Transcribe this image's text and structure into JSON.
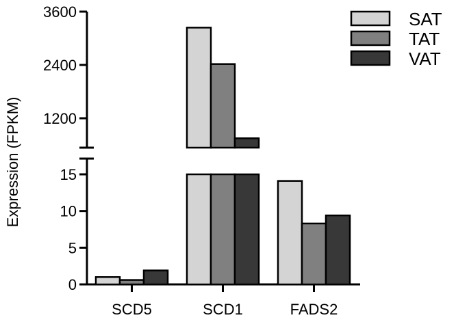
{
  "chart_data": {
    "type": "bar",
    "title": "",
    "xlabel": "",
    "ylabel": "Expression (FPKM)",
    "categories": [
      "SCD5",
      "SCD1",
      "FADS2"
    ],
    "series": [
      {
        "name": "SAT",
        "color": "#d4d4d4",
        "values": [
          1.0,
          3240,
          14.1
        ]
      },
      {
        "name": "TAT",
        "color": "#808080",
        "values": [
          0.6,
          2420,
          8.3
        ]
      },
      {
        "name": "VAT",
        "color": "#383838",
        "values": [
          1.9,
          750,
          9.4
        ]
      }
    ],
    "y_axis_break": {
      "lower_range": [
        0,
        15
      ],
      "upper_range": [
        500,
        3600
      ]
    },
    "lower_yticks": [
      0,
      5,
      10,
      15
    ],
    "upper_yticks": [
      1200,
      2400,
      3600
    ],
    "legend_position": "top-right",
    "grid": false
  }
}
